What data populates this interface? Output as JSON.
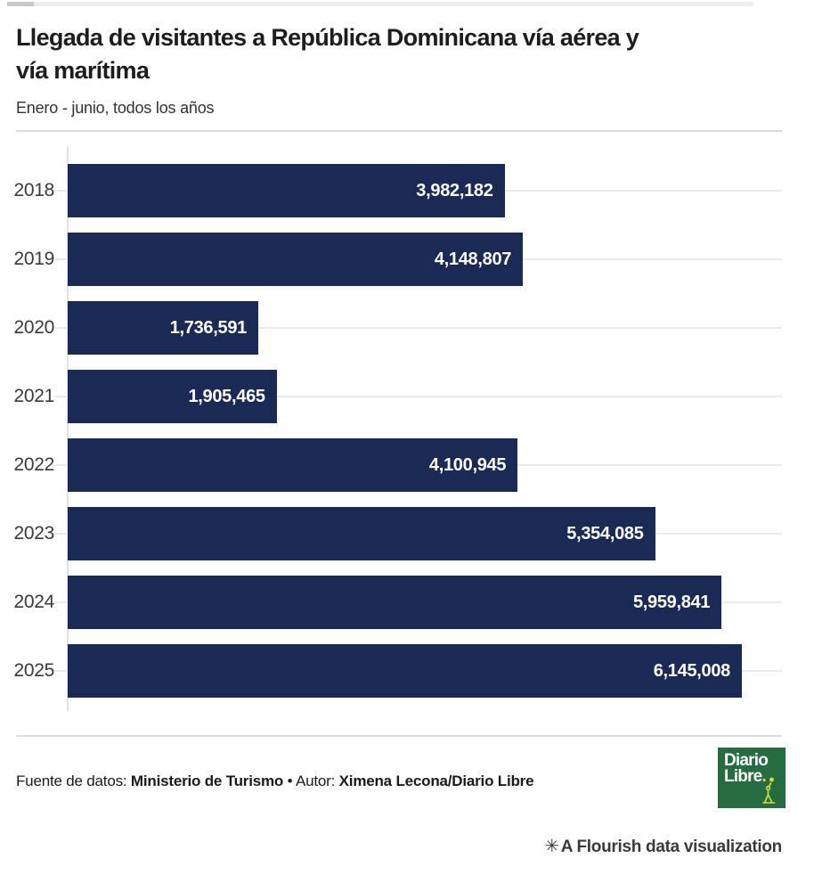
{
  "accent_colors": {
    "bar": "#1b2a55",
    "logo_green": "#276b40",
    "logo_yellow": "#d7df3b"
  },
  "header": {
    "title_line1": "Llegada de visitantes a República Dominicana vía aérea y",
    "title_line2": "vía marítima",
    "subtitle": "Enero - junio, todos los años"
  },
  "chart_data": {
    "type": "bar",
    "orientation": "horizontal",
    "title": "Llegada de visitantes a República Dominicana vía aérea y vía marítima",
    "subtitle": "Enero - junio, todos los años",
    "categories": [
      "2018",
      "2019",
      "2020",
      "2021",
      "2022",
      "2023",
      "2024",
      "2025"
    ],
    "values": [
      3982182,
      4148807,
      1736591,
      1905465,
      4100945,
      5354085,
      5959841,
      6145008
    ],
    "value_labels": [
      "3,982,182",
      "4,148,807",
      "1,736,591",
      "1,905,465",
      "4,100,945",
      "5,354,085",
      "5,959,841",
      "6,145,008"
    ],
    "xlim": [
      0,
      6510000
    ],
    "bar_color": "#1b2a55",
    "grid": "on",
    "legend": "none"
  },
  "footer": {
    "source_label": "Fuente de datos: ",
    "source": "Ministerio de Turismo",
    "separator": " • ",
    "author_label": "Autor: ",
    "author": "Ximena Lecona/Diario Libre",
    "logo": {
      "line1": "Diario",
      "line2": "Libre",
      "dot": "."
    }
  },
  "attribution": {
    "icon": "✳",
    "text": "A Flourish data visualization"
  }
}
